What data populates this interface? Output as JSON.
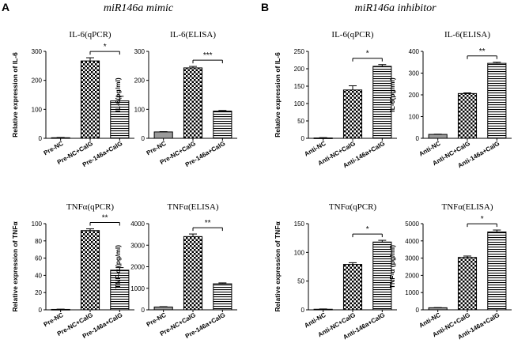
{
  "panels": [
    {
      "letter": "A",
      "heading": "miR146a mimic"
    },
    {
      "letter": "B",
      "heading": "miR146a inhibitor"
    }
  ],
  "colors": {
    "ink": "#000000",
    "grey_bar": "#9a9a9a",
    "background": "#ffffff"
  },
  "chart_data": [
    {
      "type": "bar",
      "panel": "A",
      "title": "IL-6(qPCR)",
      "ylabel": "Relative expression of IL-6",
      "categories": [
        "Pre-NC",
        "Pre-NC+CalG",
        "Pre-146a+CalG"
      ],
      "patterns": [
        "grey",
        "checker",
        "hstripe"
      ],
      "values": [
        2,
        267,
        129
      ],
      "errors": [
        1,
        11,
        16
      ],
      "ylim": [
        0,
        300
      ],
      "yticks": [
        0,
        100,
        200,
        300
      ],
      "significance": {
        "from": 1,
        "to": 2,
        "label": "*"
      }
    },
    {
      "type": "bar",
      "panel": "A",
      "title": "IL-6(ELISA)",
      "ylabel": "IL-6(pg/ml)",
      "categories": [
        "Pre-NC",
        "Pre-NC+CalG",
        "Pre-146a+CalG"
      ],
      "patterns": [
        "grey",
        "checker",
        "hstripe"
      ],
      "values": [
        22,
        243,
        94
      ],
      "errors": [
        1,
        5,
        2
      ],
      "ylim": [
        0,
        300
      ],
      "yticks": [
        0,
        100,
        200,
        300
      ],
      "significance": {
        "from": 1,
        "to": 2,
        "label": "***"
      }
    },
    {
      "type": "bar",
      "panel": "B",
      "title": "IL-6(qPCR)",
      "ylabel": "Relative expression of IL-6",
      "categories": [
        "Anti-NC",
        "Anti-NC+CalG",
        "Anti-146a+CalG"
      ],
      "patterns": [
        "grey",
        "checker",
        "hstripe"
      ],
      "values": [
        1,
        139,
        207
      ],
      "errors": [
        1,
        12,
        5
      ],
      "ylim": [
        0,
        250
      ],
      "yticks": [
        0,
        50,
        100,
        150,
        200,
        250
      ],
      "significance": {
        "from": 1,
        "to": 2,
        "label": "*"
      }
    },
    {
      "type": "bar",
      "panel": "B",
      "title": "IL-6(ELISA)",
      "ylabel": "IL-6(pg/ml)",
      "categories": [
        "Anti-NC",
        "Anti-NC+CalG",
        "Anti-146a+CalG"
      ],
      "patterns": [
        "grey",
        "checker",
        "hstripe"
      ],
      "values": [
        18,
        206,
        345
      ],
      "errors": [
        1,
        3,
        5
      ],
      "ylim": [
        0,
        400
      ],
      "yticks": [
        0,
        100,
        200,
        300,
        400
      ],
      "significance": {
        "from": 1,
        "to": 2,
        "label": "**"
      }
    },
    {
      "type": "bar",
      "panel": "A",
      "title": "TNFα(qPCR)",
      "ylabel": "Relative expression of TNFα",
      "categories": [
        "Pre-NC",
        "Pre-NC+CalG",
        "Pre-146a+CalG"
      ],
      "patterns": [
        "grey",
        "checker",
        "hstripe"
      ],
      "values": [
        0.5,
        92,
        46
      ],
      "errors": [
        0.3,
        2,
        3
      ],
      "ylim": [
        0,
        100
      ],
      "yticks": [
        0,
        20,
        40,
        60,
        80,
        100
      ],
      "significance": {
        "from": 1,
        "to": 2,
        "label": "**"
      }
    },
    {
      "type": "bar",
      "panel": "A",
      "title": "TNFα(ELISA)",
      "ylabel": "TNF-α (pg/ml)",
      "categories": [
        "Pre-NC",
        "Pre-NC+CalG",
        "Pre-146a+CalG"
      ],
      "patterns": [
        "grey",
        "checker",
        "hstripe"
      ],
      "values": [
        130,
        3400,
        1210
      ],
      "errors": [
        15,
        120,
        40
      ],
      "ylim": [
        0,
        4000
      ],
      "yticks": [
        0,
        1000,
        2000,
        3000,
        4000
      ],
      "significance": {
        "from": 1,
        "to": 2,
        "label": "**"
      }
    },
    {
      "type": "bar",
      "panel": "B",
      "title": "TNFα(qPCR)",
      "ylabel": "Relative expression of TNFα",
      "categories": [
        "Anti-NC",
        "Anti-NC+CalG",
        "Anti-146a+CalG"
      ],
      "patterns": [
        "grey",
        "checker",
        "hstripe"
      ],
      "values": [
        1,
        79,
        118
      ],
      "errors": [
        0.5,
        3,
        3
      ],
      "ylim": [
        0,
        150
      ],
      "yticks": [
        0,
        50,
        100,
        150
      ],
      "significance": {
        "from": 1,
        "to": 2,
        "label": "*"
      }
    },
    {
      "type": "bar",
      "panel": "B",
      "title": "TNFα(ELISA)",
      "ylabel": "TNF-α (pg/ml)",
      "categories": [
        "Anti-NC",
        "Anti-NC+CalG",
        "Anti-146a+CalG"
      ],
      "patterns": [
        "grey",
        "checker",
        "hstripe"
      ],
      "values": [
        120,
        3040,
        4520
      ],
      "errors": [
        10,
        80,
        110
      ],
      "ylim": [
        0,
        5000
      ],
      "yticks": [
        0,
        1000,
        2000,
        3000,
        4000,
        5000
      ],
      "significance": {
        "from": 1,
        "to": 2,
        "label": "*"
      }
    }
  ]
}
